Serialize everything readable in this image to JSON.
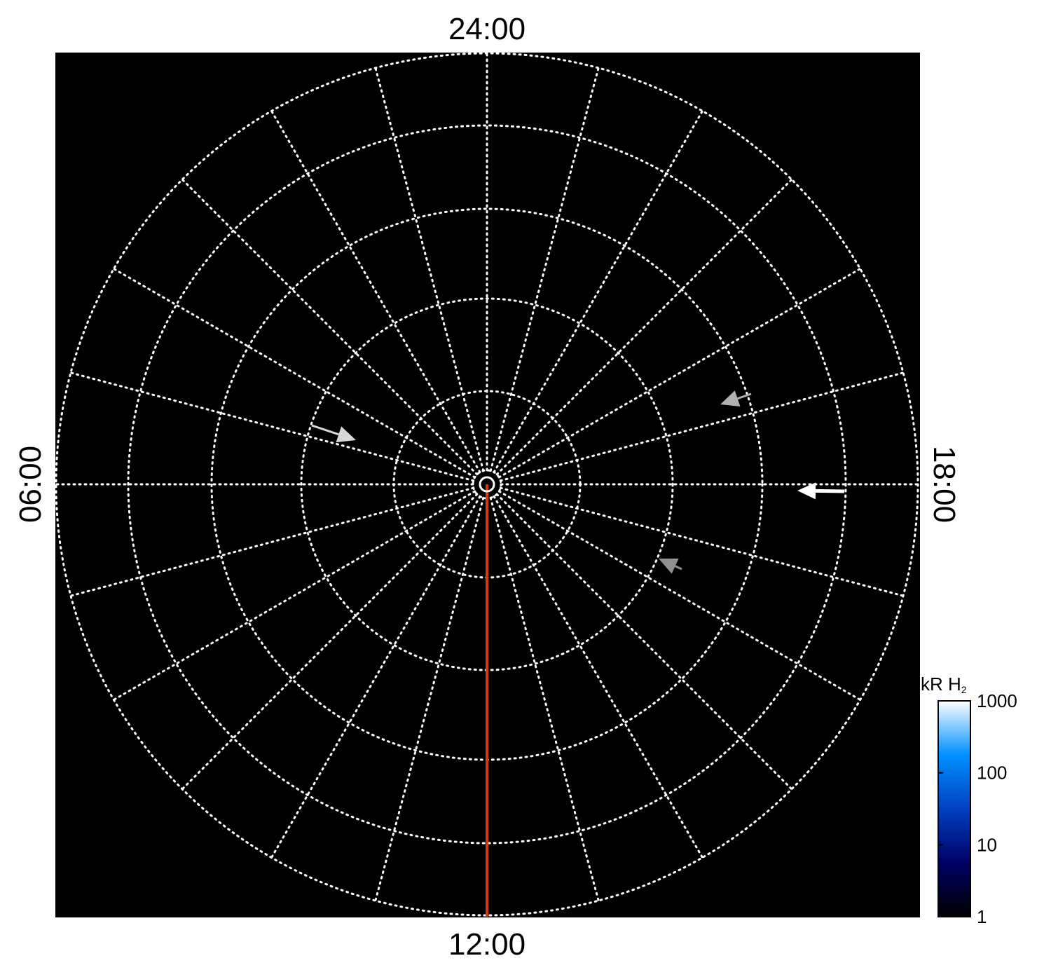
{
  "chart_data": {
    "type": "heatmap",
    "projection": "polar",
    "title": "",
    "local_time_labels": {
      "top": "24:00",
      "bottom": "12:00",
      "left": "06:00",
      "right": "18:00"
    },
    "grid": true,
    "grid_style": "dotted",
    "meridian_count": 24,
    "latitude_circle_count": 5,
    "background_color": "#000000",
    "grid_color": "#ffffff",
    "reference_line_color": "#d03a10",
    "reference_line_local_time": "12:00",
    "arrows": [
      {
        "color": "#ffffff",
        "local_time_approx": "18:00"
      },
      {
        "color": "#d8d8d8",
        "local_time_approx": "05:00"
      },
      {
        "color": "#b0b0b0",
        "local_time_approx": "19:00"
      },
      {
        "color": "#909090",
        "local_time_approx": "16:00"
      }
    ],
    "colorbar": {
      "label": "kR H",
      "label_subscript": "2",
      "scale": "log",
      "range": [
        1,
        1000
      ],
      "ticks": [
        "1",
        "10",
        "100",
        "1000"
      ],
      "colors": [
        "#000000",
        "#000066",
        "#0040c0",
        "#0090ff",
        "#ffffff"
      ]
    }
  }
}
